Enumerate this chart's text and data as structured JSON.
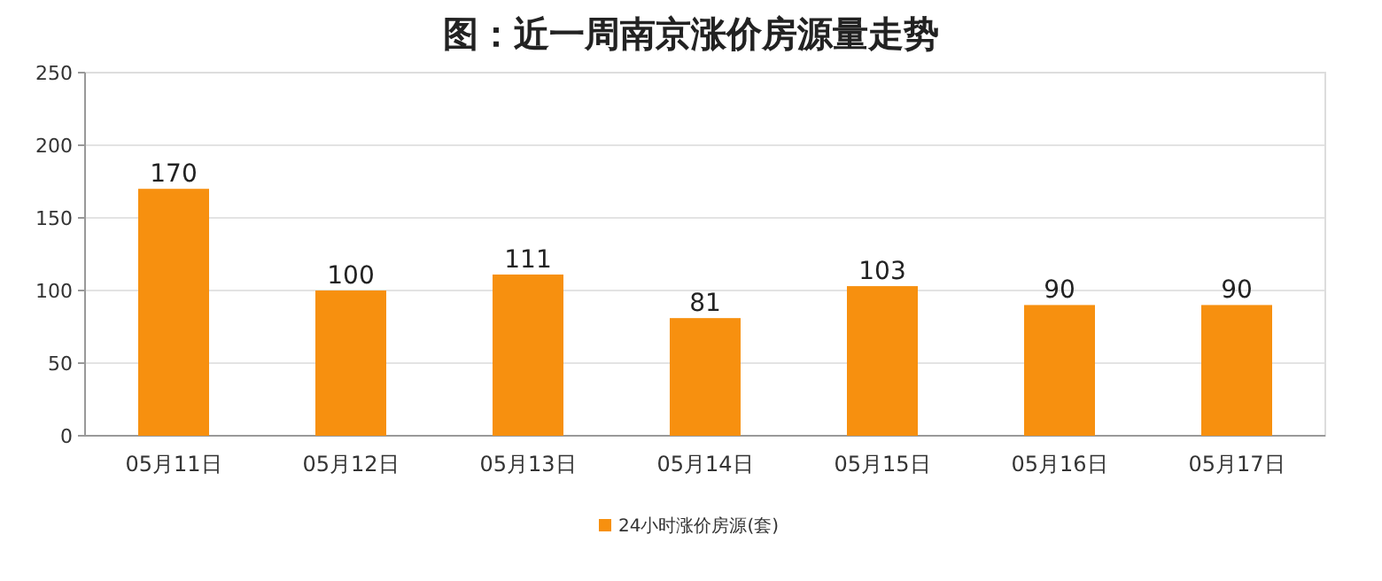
{
  "chart_data": {
    "type": "bar",
    "title": "图：近一周南京涨价房源量走势",
    "categories": [
      "05月11日",
      "05月12日",
      "05月13日",
      "05月14日",
      "05月15日",
      "05月16日",
      "05月17日"
    ],
    "series": [
      {
        "name": "24小时涨价房源(套)",
        "color": "#f7900f",
        "values": [
          170,
          100,
          111,
          81,
          103,
          90,
          90
        ]
      }
    ],
    "ylim": [
      0,
      250
    ],
    "yticks": [
      0,
      50,
      100,
      150,
      200,
      250
    ],
    "grid": "y",
    "legend": "bottom",
    "data_labels": true
  }
}
